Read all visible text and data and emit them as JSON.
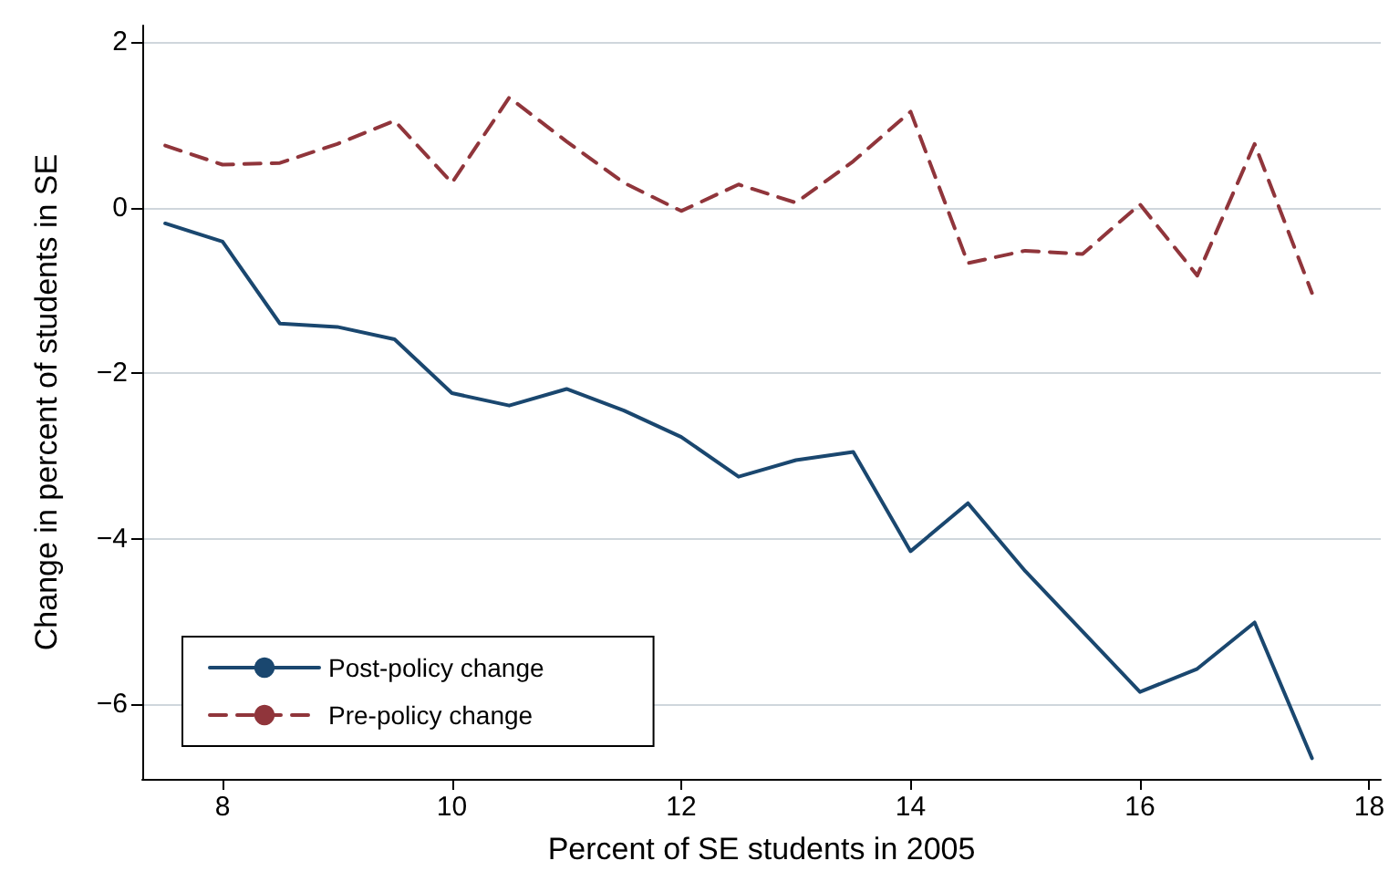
{
  "chart_data": {
    "type": "line",
    "xlabel": "Percent of SE students in 2005",
    "ylabel": "Change in percent of students in SE",
    "x": [
      7.5,
      8,
      8.5,
      9,
      9.5,
      10,
      10.5,
      11,
      11.5,
      12,
      12.5,
      13,
      13.5,
      14,
      14.5,
      15,
      15.5,
      16,
      16.5,
      17,
      17.5
    ],
    "series": [
      {
        "name": "Post-policy change",
        "color": "#1a476f",
        "line_style": "solid",
        "values": [
          -0.19,
          -0.41,
          -1.4,
          -1.44,
          -1.59,
          -2.24,
          -2.39,
          -2.19,
          -2.45,
          -2.77,
          -3.25,
          -3.05,
          -2.95,
          -4.15,
          -3.57,
          -4.39,
          -5.12,
          -5.85,
          -5.57,
          -5.01,
          -6.65
        ]
      },
      {
        "name": "Pre-policy change",
        "color": "#90353b",
        "line_style": "dashed",
        "values": [
          0.75,
          0.52,
          0.54,
          0.77,
          1.05,
          0.3,
          1.33,
          0.8,
          0.3,
          -0.04,
          0.28,
          0.06,
          0.56,
          1.16,
          -0.67,
          -0.52,
          -0.56,
          0.04,
          -0.82,
          0.77,
          -1.03
        ]
      }
    ],
    "xlim": [
      7.3,
      18.1
    ],
    "xticks": [
      8,
      10,
      12,
      14,
      16,
      18
    ],
    "ylim": [
      -6.9,
      2.2
    ],
    "yticks": [
      {
        "value": -6,
        "label": "−6"
      },
      {
        "value": -4,
        "label": "−4"
      },
      {
        "value": -2,
        "label": "−2"
      },
      0,
      2
    ],
    "grid": "y",
    "legend": "bottom left",
    "marker": "none"
  }
}
